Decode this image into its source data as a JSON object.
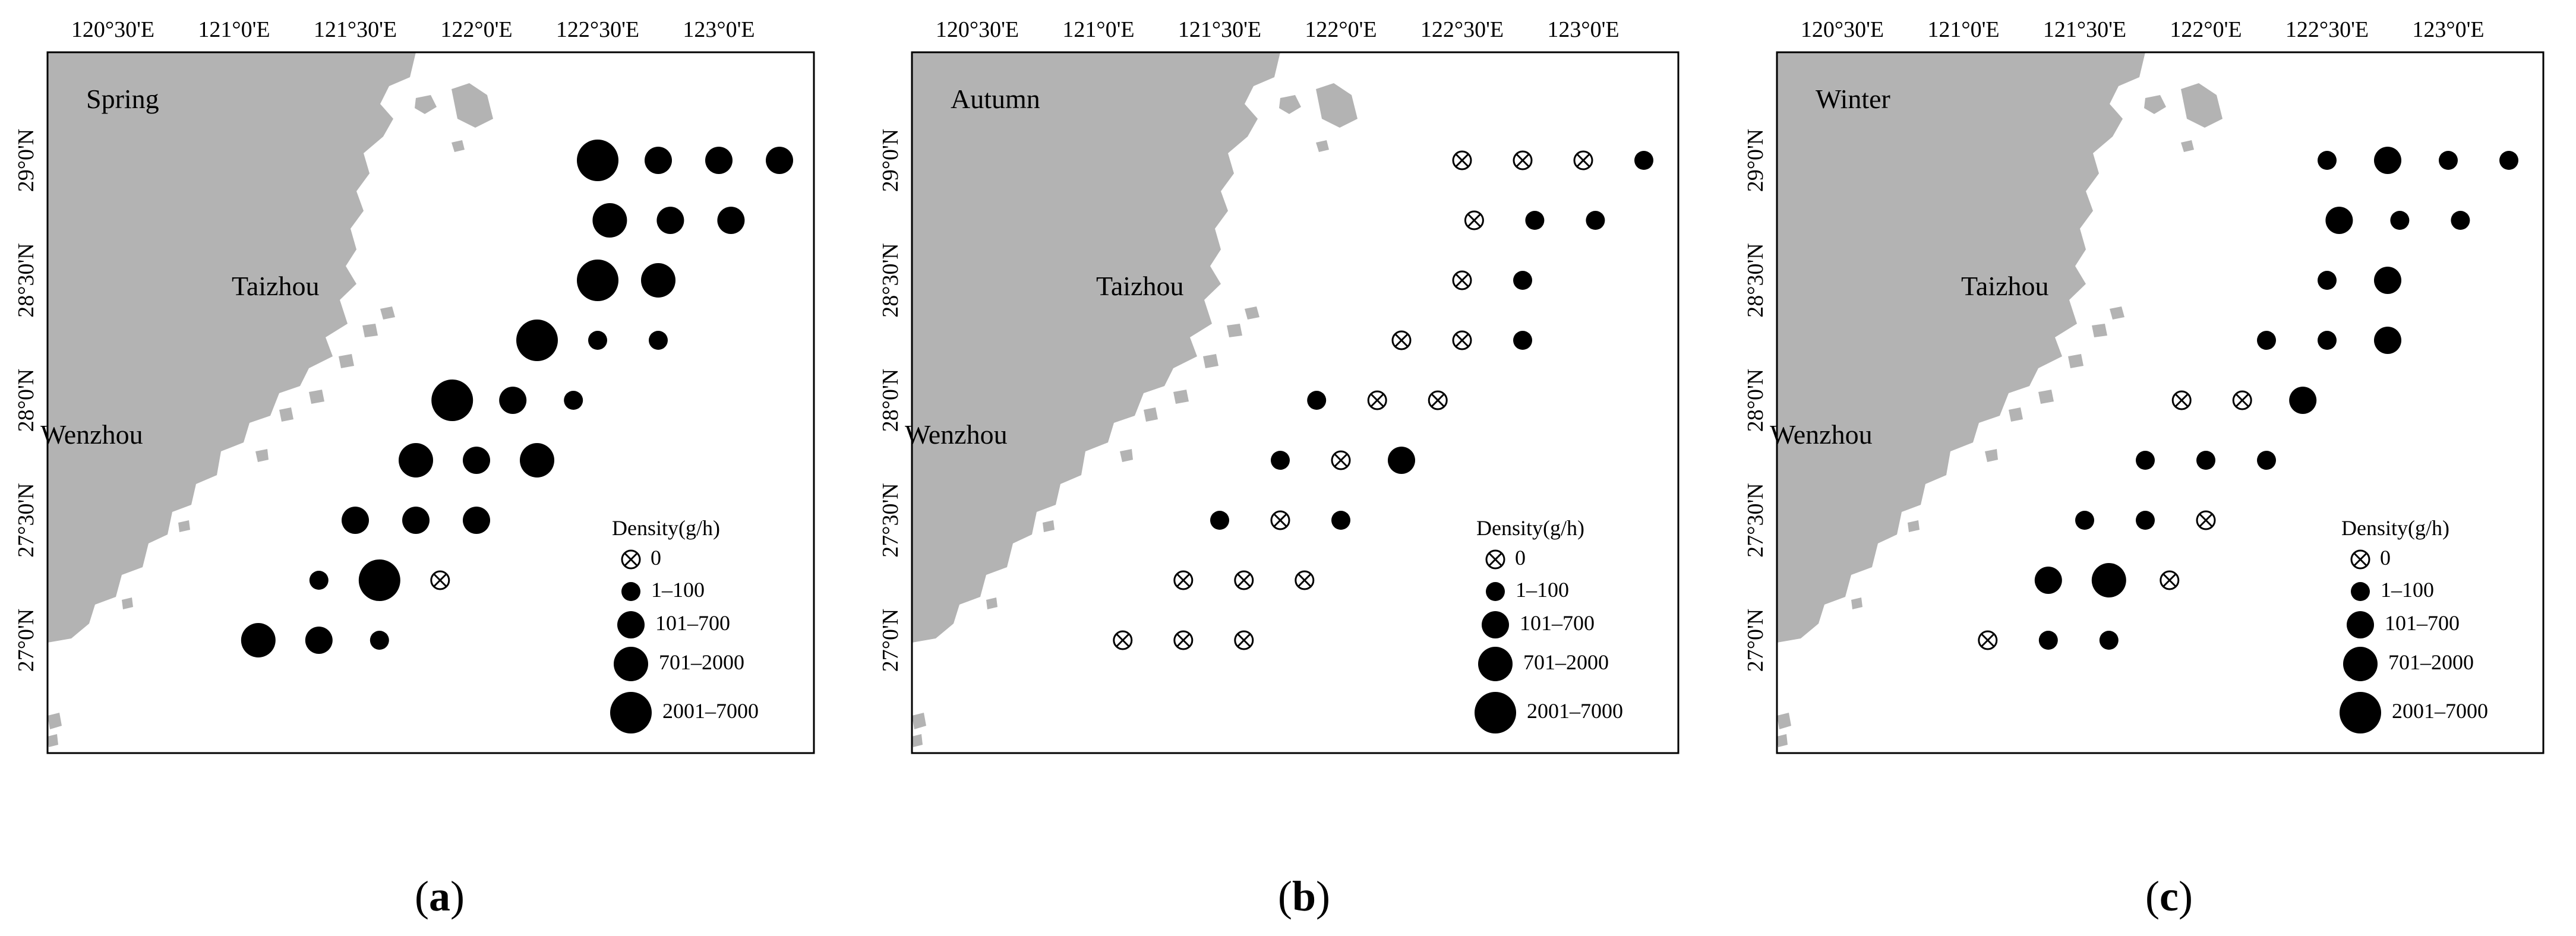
{
  "lon_labels": [
    "120°30'E",
    "121°0'E",
    "121°30'E",
    "122°0'E",
    "122°30'E",
    "123°0'E"
  ],
  "lat_labels": [
    "29°0'N",
    "28°30'N",
    "28°0'N",
    "27°30'N",
    "27°0'N"
  ],
  "city_names": {
    "taizhou": "Taizhou",
    "wenzhou": "Wenzhou"
  },
  "legend": {
    "title": "Density(g/h)",
    "classes_ab": [
      "0",
      "1–100",
      "101–700",
      "701–2000",
      "2001–7000"
    ],
    "classes_c": [
      "0",
      "1–100",
      "101–700",
      "701–2000",
      "2001–7000"
    ]
  },
  "colors": {
    "land": "#b3b3b3",
    "sea": "#ffffff",
    "marker": "#000000",
    "frame": "#000000"
  },
  "panels": [
    {
      "id": "a",
      "caption": "a",
      "season": "Spring",
      "stations": [
        {
          "lon": 122.5,
          "lat": 29.0,
          "cls": 4
        },
        {
          "lon": 122.75,
          "lat": 29.0,
          "cls": 2
        },
        {
          "lon": 123.0,
          "lat": 29.0,
          "cls": 2
        },
        {
          "lon": 123.25,
          "lat": 29.0,
          "cls": 2
        },
        {
          "lon": 122.55,
          "lat": 28.75,
          "cls": 3
        },
        {
          "lon": 122.8,
          "lat": 28.75,
          "cls": 2
        },
        {
          "lon": 123.05,
          "lat": 28.75,
          "cls": 2
        },
        {
          "lon": 122.5,
          "lat": 28.5,
          "cls": 4
        },
        {
          "lon": 122.75,
          "lat": 28.5,
          "cls": 3
        },
        {
          "lon": 122.25,
          "lat": 28.25,
          "cls": 4
        },
        {
          "lon": 122.5,
          "lat": 28.25,
          "cls": 1
        },
        {
          "lon": 122.75,
          "lat": 28.25,
          "cls": 1
        },
        {
          "lon": 121.9,
          "lat": 28.0,
          "cls": 4
        },
        {
          "lon": 122.15,
          "lat": 28.0,
          "cls": 2
        },
        {
          "lon": 122.4,
          "lat": 28.0,
          "cls": 1
        },
        {
          "lon": 121.75,
          "lat": 27.75,
          "cls": 3
        },
        {
          "lon": 122.0,
          "lat": 27.75,
          "cls": 2
        },
        {
          "lon": 122.25,
          "lat": 27.75,
          "cls": 3
        },
        {
          "lon": 121.5,
          "lat": 27.5,
          "cls": 2
        },
        {
          "lon": 121.75,
          "lat": 27.5,
          "cls": 2
        },
        {
          "lon": 122.0,
          "lat": 27.5,
          "cls": 2
        },
        {
          "lon": 121.35,
          "lat": 27.25,
          "cls": 1
        },
        {
          "lon": 121.6,
          "lat": 27.25,
          "cls": 4
        },
        {
          "lon": 121.85,
          "lat": 27.25,
          "cls": 0
        },
        {
          "lon": 121.1,
          "lat": 27.0,
          "cls": 3
        },
        {
          "lon": 121.35,
          "lat": 27.0,
          "cls": 2
        },
        {
          "lon": 121.6,
          "lat": 27.0,
          "cls": 1
        }
      ]
    },
    {
      "id": "b",
      "caption": "b",
      "season": "Autumn",
      "stations": [
        {
          "lon": 122.5,
          "lat": 29.0,
          "cls": 0
        },
        {
          "lon": 122.75,
          "lat": 29.0,
          "cls": 0
        },
        {
          "lon": 123.0,
          "lat": 29.0,
          "cls": 0
        },
        {
          "lon": 123.25,
          "lat": 29.0,
          "cls": 1
        },
        {
          "lon": 122.55,
          "lat": 28.75,
          "cls": 0
        },
        {
          "lon": 122.8,
          "lat": 28.75,
          "cls": 1
        },
        {
          "lon": 123.05,
          "lat": 28.75,
          "cls": 1
        },
        {
          "lon": 122.5,
          "lat": 28.5,
          "cls": 0
        },
        {
          "lon": 122.75,
          "lat": 28.5,
          "cls": 1
        },
        {
          "lon": 122.25,
          "lat": 28.25,
          "cls": 0
        },
        {
          "lon": 122.5,
          "lat": 28.25,
          "cls": 0
        },
        {
          "lon": 122.75,
          "lat": 28.25,
          "cls": 1
        },
        {
          "lon": 121.9,
          "lat": 28.0,
          "cls": 1
        },
        {
          "lon": 122.15,
          "lat": 28.0,
          "cls": 0
        },
        {
          "lon": 122.4,
          "lat": 28.0,
          "cls": 0
        },
        {
          "lon": 121.75,
          "lat": 27.75,
          "cls": 1
        },
        {
          "lon": 122.0,
          "lat": 27.75,
          "cls": 0
        },
        {
          "lon": 122.25,
          "lat": 27.75,
          "cls": 2
        },
        {
          "lon": 121.5,
          "lat": 27.5,
          "cls": 1
        },
        {
          "lon": 121.75,
          "lat": 27.5,
          "cls": 0
        },
        {
          "lon": 122.0,
          "lat": 27.5,
          "cls": 1
        },
        {
          "lon": 121.35,
          "lat": 27.25,
          "cls": 0
        },
        {
          "lon": 121.6,
          "lat": 27.25,
          "cls": 0
        },
        {
          "lon": 121.85,
          "lat": 27.25,
          "cls": 0
        },
        {
          "lon": 121.1,
          "lat": 27.0,
          "cls": 0
        },
        {
          "lon": 121.35,
          "lat": 27.0,
          "cls": 0
        },
        {
          "lon": 121.6,
          "lat": 27.0,
          "cls": 0
        }
      ]
    },
    {
      "id": "c",
      "caption": "c",
      "season": "Winter",
      "stations": [
        {
          "lon": 122.5,
          "lat": 29.0,
          "cls": 1
        },
        {
          "lon": 122.75,
          "lat": 29.0,
          "cls": 2
        },
        {
          "lon": 123.0,
          "lat": 29.0,
          "cls": 1
        },
        {
          "lon": 123.25,
          "lat": 29.0,
          "cls": 1
        },
        {
          "lon": 122.55,
          "lat": 28.75,
          "cls": 2
        },
        {
          "lon": 122.8,
          "lat": 28.75,
          "cls": 1
        },
        {
          "lon": 123.05,
          "lat": 28.75,
          "cls": 1
        },
        {
          "lon": 122.5,
          "lat": 28.5,
          "cls": 1
        },
        {
          "lon": 122.75,
          "lat": 28.5,
          "cls": 2
        },
        {
          "lon": 122.25,
          "lat": 28.25,
          "cls": 1
        },
        {
          "lon": 122.5,
          "lat": 28.25,
          "cls": 1
        },
        {
          "lon": 122.75,
          "lat": 28.25,
          "cls": 2
        },
        {
          "lon": 121.9,
          "lat": 28.0,
          "cls": 0
        },
        {
          "lon": 122.15,
          "lat": 28.0,
          "cls": 0
        },
        {
          "lon": 122.4,
          "lat": 28.0,
          "cls": 2
        },
        {
          "lon": 121.75,
          "lat": 27.75,
          "cls": 1
        },
        {
          "lon": 122.0,
          "lat": 27.75,
          "cls": 1
        },
        {
          "lon": 122.25,
          "lat": 27.75,
          "cls": 1
        },
        {
          "lon": 121.5,
          "lat": 27.5,
          "cls": 1
        },
        {
          "lon": 121.75,
          "lat": 27.5,
          "cls": 1
        },
        {
          "lon": 122.0,
          "lat": 27.5,
          "cls": 0
        },
        {
          "lon": 121.35,
          "lat": 27.25,
          "cls": 2
        },
        {
          "lon": 121.6,
          "lat": 27.25,
          "cls": 3
        },
        {
          "lon": 121.85,
          "lat": 27.25,
          "cls": 0
        },
        {
          "lon": 121.1,
          "lat": 27.0,
          "cls": 0
        },
        {
          "lon": 121.35,
          "lat": 27.0,
          "cls": 1
        },
        {
          "lon": 121.6,
          "lat": 27.0,
          "cls": 1
        }
      ]
    }
  ]
}
